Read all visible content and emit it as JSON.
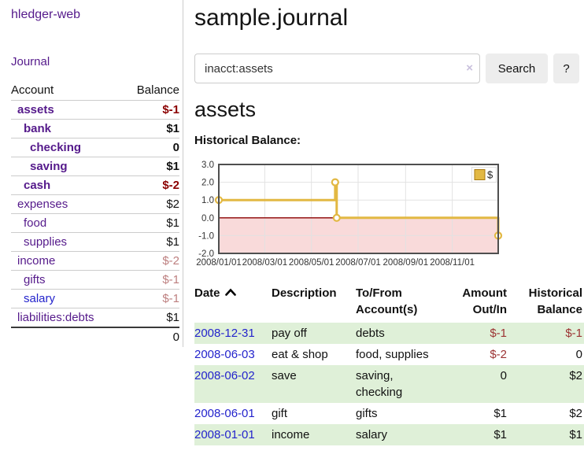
{
  "app": {
    "brand": "hledger-web",
    "nav_journal": "Journal"
  },
  "sidebar": {
    "table_headers": {
      "account": "Account",
      "balance": "Balance"
    },
    "accounts": [
      {
        "name": "assets",
        "balance": "$-1",
        "indent": 0,
        "bold": true,
        "name_color": "purple",
        "balance_color": "strong_negative"
      },
      {
        "name": "bank",
        "balance": "$1",
        "indent": 1,
        "bold": true,
        "name_color": "purple",
        "balance_color": "default"
      },
      {
        "name": "checking",
        "balance": "0",
        "indent": 2,
        "bold": true,
        "name_color": "purple",
        "balance_color": "default"
      },
      {
        "name": "saving",
        "balance": "$1",
        "indent": 2,
        "bold": true,
        "name_color": "purple",
        "balance_color": "default"
      },
      {
        "name": "cash",
        "balance": "$-2",
        "indent": 1,
        "bold": true,
        "name_color": "purple",
        "balance_color": "strong_negative"
      },
      {
        "name": "expenses",
        "balance": "$2",
        "indent": 0,
        "bold": false,
        "name_color": "purple",
        "balance_color": "default"
      },
      {
        "name": "food",
        "balance": "$1",
        "indent": 1,
        "bold": false,
        "name_color": "purple",
        "balance_color": "default"
      },
      {
        "name": "supplies",
        "balance": "$1",
        "indent": 1,
        "bold": false,
        "name_color": "purple",
        "balance_color": "default"
      },
      {
        "name": "income",
        "balance": "$-2",
        "indent": 0,
        "bold": false,
        "name_color": "purple",
        "balance_color": "faded_negative"
      },
      {
        "name": "gifts",
        "balance": "$-1",
        "indent": 1,
        "bold": false,
        "name_color": "purple",
        "balance_color": "faded_negative"
      },
      {
        "name": "salary",
        "balance": "$-1",
        "indent": 1,
        "bold": false,
        "name_color": "blue",
        "balance_color": "faded_negative"
      },
      {
        "name": "liabilities:debts",
        "balance": "$1",
        "indent": 0,
        "bold": false,
        "name_color": "purple",
        "balance_color": "default"
      }
    ],
    "total": "0"
  },
  "main": {
    "title": "sample.journal",
    "search": {
      "value": "inacct:assets",
      "clear_label": "×",
      "button": "Search",
      "help_button": "?"
    },
    "account_heading": "assets",
    "chart_label": "Historical Balance:"
  },
  "chart_data": {
    "type": "line",
    "step": true,
    "title": "Historical Balance:",
    "series": [
      {
        "name": "$",
        "color": "#e2b843",
        "points": [
          {
            "x": "2008-01-01",
            "y": 1
          },
          {
            "x": "2008-06-01",
            "y": 2
          },
          {
            "x": "2008-06-03",
            "y": 0
          },
          {
            "x": "2008-12-31",
            "y": -1
          }
        ]
      }
    ],
    "x_range": [
      "2008-01-01",
      "2008-12-31"
    ],
    "x_tick_labels": [
      "2008/01/01",
      "2008/03/01",
      "2008/05/01",
      "2008/07/01",
      "2008/09/01",
      "2008/11/01"
    ],
    "y_tick_labels": [
      "3.0",
      "2.0",
      "1.0",
      "0.0",
      "-1.0",
      "-2.0"
    ],
    "ylim": [
      -2,
      3
    ],
    "grid": true,
    "legend_position": "top-right",
    "legend_label": "$",
    "negative_region_color": "#f9dada",
    "zero_line_color": "#8b0000"
  },
  "register": {
    "columns": [
      {
        "label": "Date",
        "align": "left",
        "sorted": "asc"
      },
      {
        "label": "Description",
        "align": "left",
        "sorted": null
      },
      {
        "label": "To/From Account(s)",
        "align": "left",
        "sorted": null
      },
      {
        "label": "Amount Out/In",
        "align": "right",
        "sorted": null
      },
      {
        "label": "Historical Balance",
        "align": "right",
        "sorted": null
      }
    ],
    "rows": [
      {
        "date": "2008-12-31",
        "description": "pay off",
        "accounts": "debts",
        "amount": "$-1",
        "amount_negative": true,
        "balance": "$-1",
        "balance_negative": true,
        "highlighted": true
      },
      {
        "date": "2008-06-03",
        "description": "eat & shop",
        "accounts": "food, supplies",
        "amount": "$-2",
        "amount_negative": true,
        "balance": "0",
        "balance_negative": false,
        "highlighted": false
      },
      {
        "date": "2008-06-02",
        "description": "save",
        "accounts": "saving, checking",
        "amount": "0",
        "amount_negative": false,
        "balance": "$2",
        "balance_negative": false,
        "highlighted": true
      },
      {
        "date": "2008-06-01",
        "description": "gift",
        "accounts": "gifts",
        "amount": "$1",
        "amount_negative": false,
        "balance": "$2",
        "balance_negative": false,
        "highlighted": false
      },
      {
        "date": "2008-01-01",
        "description": "income",
        "accounts": "salary",
        "amount": "$1",
        "amount_negative": false,
        "balance": "$1",
        "balance_negative": false,
        "highlighted": true
      }
    ]
  },
  "colors": {
    "purple_link": "#551a8b",
    "blue_link": "#2424cc",
    "negative_strong": "#8b0000",
    "negative_table": "#9c3333",
    "negative_faded": "#bd7f7f",
    "row_highlight": "#dff0d8",
    "divider": "#cccccc",
    "button_bg": "#ededed"
  }
}
